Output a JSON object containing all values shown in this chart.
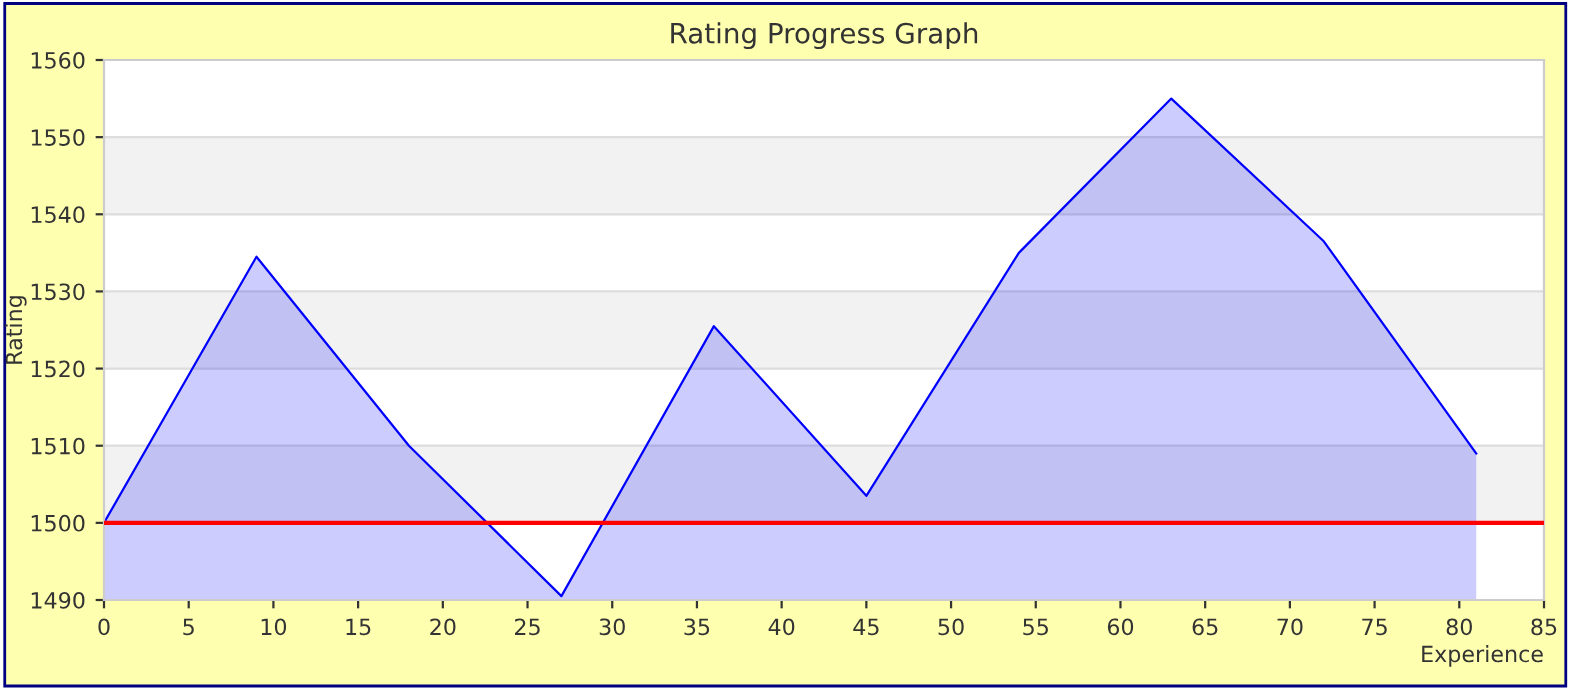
{
  "chart_data": {
    "type": "area",
    "title": "Rating Progress Graph",
    "xlabel": "Experience",
    "ylabel": "Rating",
    "x": [
      0,
      9,
      18,
      27,
      36,
      45,
      54,
      63,
      72,
      81
    ],
    "series": [
      {
        "color": "#0000ff",
        "values": [
          1500,
          1534.5,
          1510,
          1490.5,
          1525.5,
          1503.5,
          1535,
          1555,
          1536.5,
          1509
        ]
      }
    ],
    "xlim": [
      0,
      85
    ],
    "ylim": [
      1490,
      1560
    ],
    "xticks": [
      0,
      5,
      10,
      15,
      20,
      25,
      30,
      35,
      40,
      45,
      50,
      55,
      60,
      65,
      70,
      75,
      80,
      85
    ],
    "yticks": [
      1490,
      1500,
      1510,
      1520,
      1530,
      1540,
      1550,
      1560
    ],
    "ref_lines": [
      {
        "axis": "y",
        "value": 1500,
        "color": "#ff0000"
      }
    ],
    "grid": "y"
  }
}
